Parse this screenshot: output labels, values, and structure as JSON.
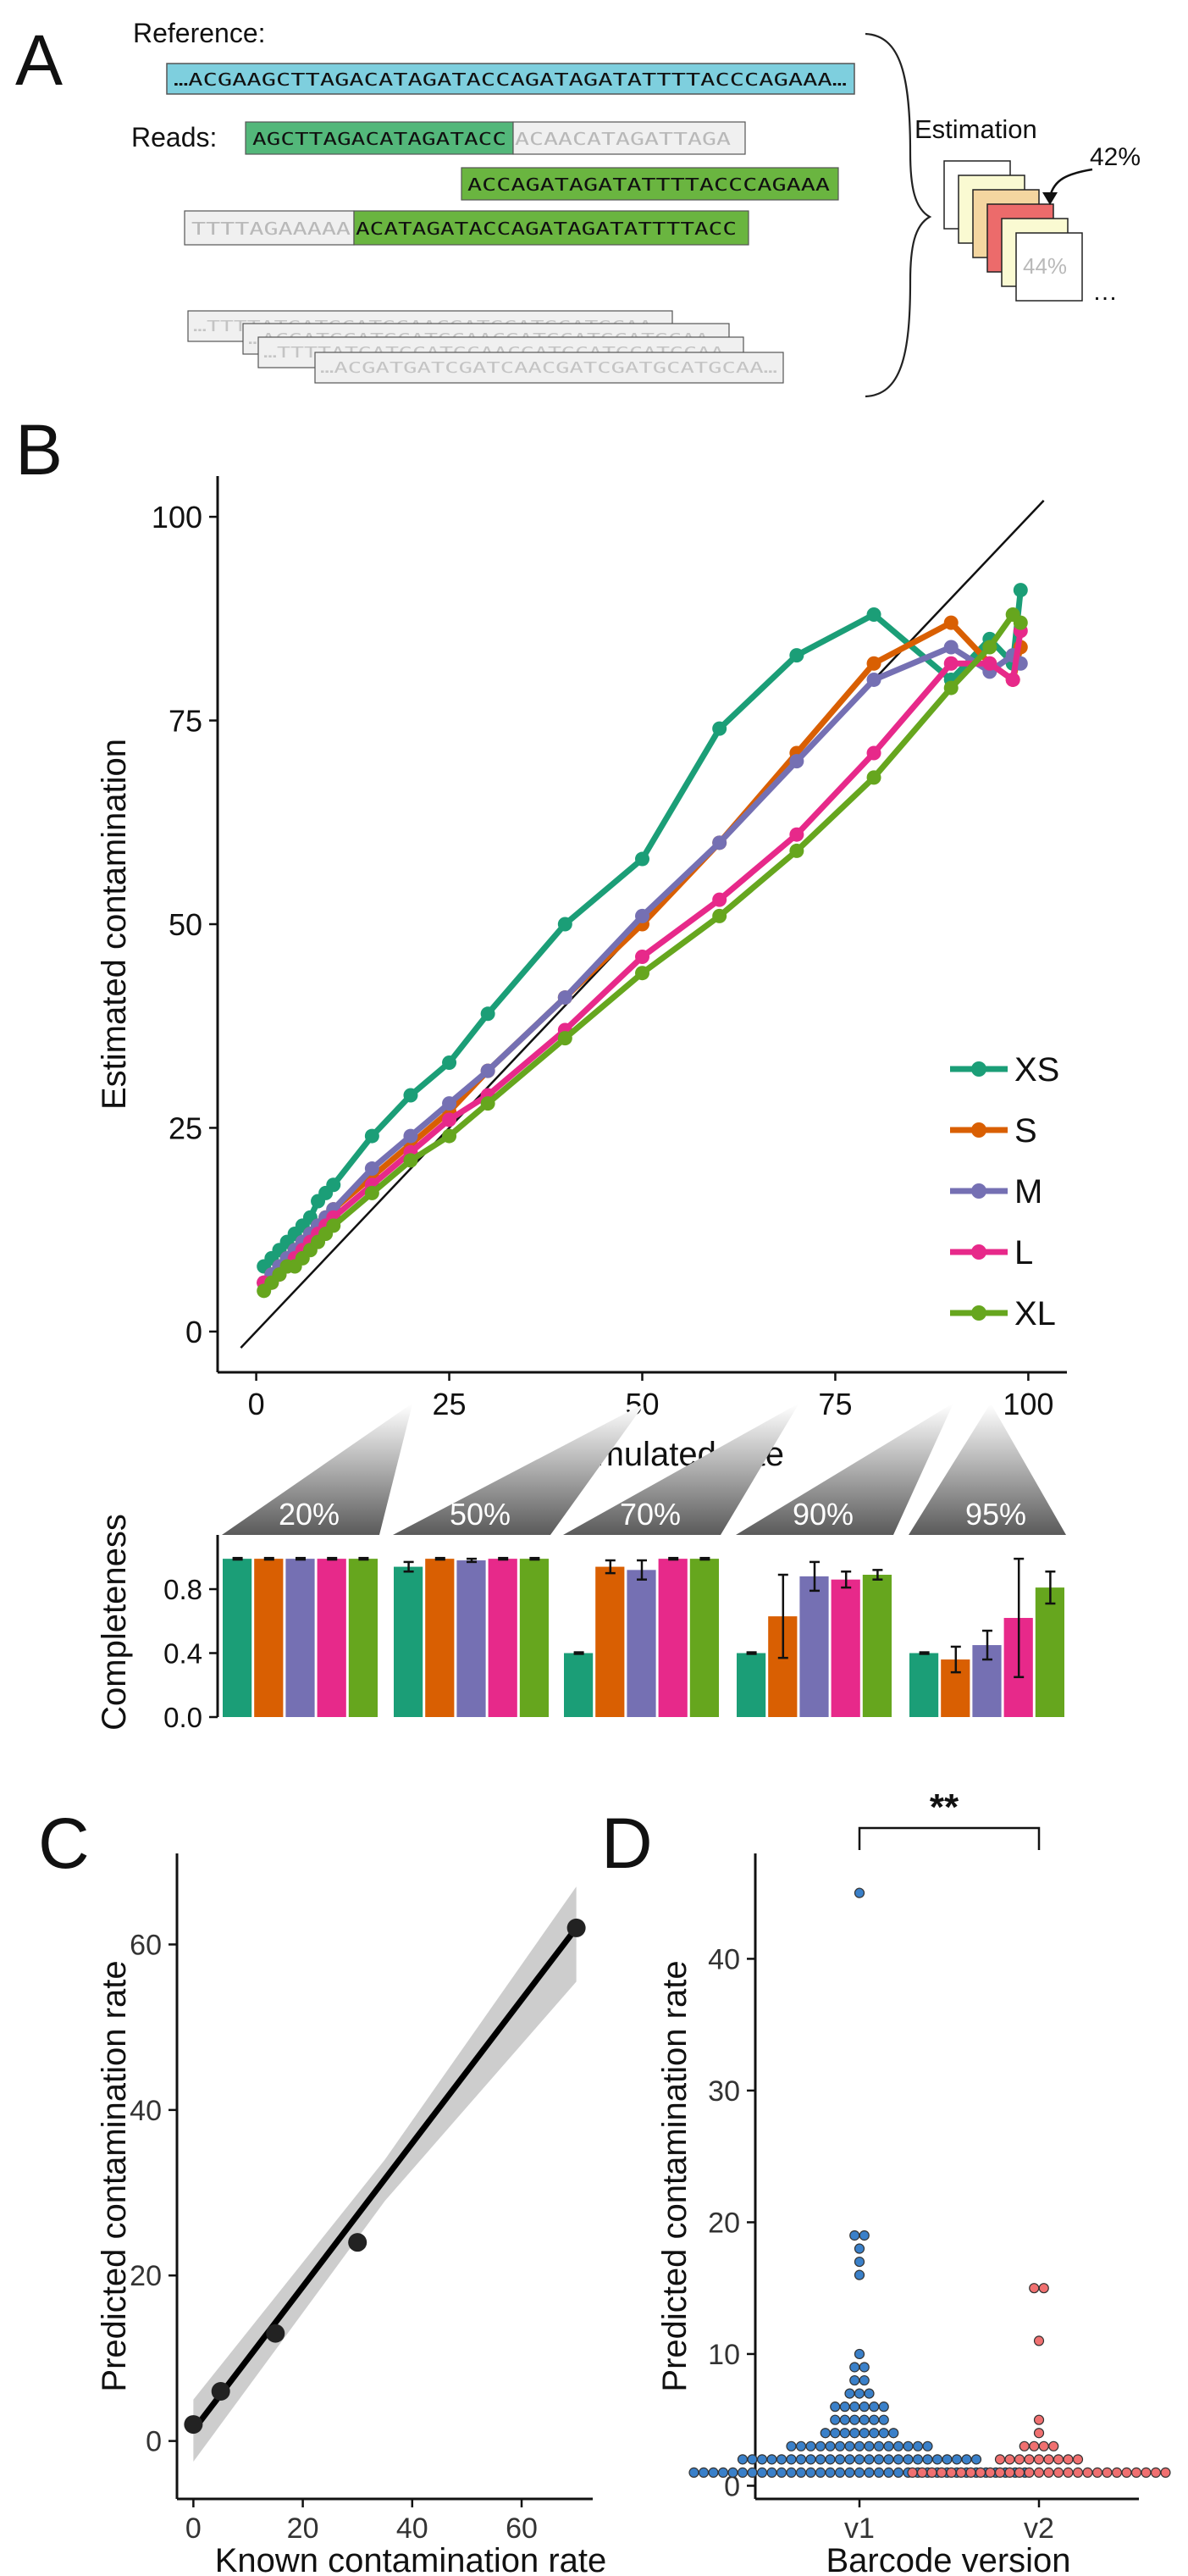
{
  "colors": {
    "XS": "#1b9e77",
    "S": "#d95f02",
    "M": "#7570b3",
    "L": "#e7298a",
    "XL": "#66a61e"
  },
  "panelA": {
    "panel_label": "A",
    "reference_label": "Reference:",
    "reference_seq": "…ACGAAGCTTAGACATAGATACCAGATAGATATTTTACCCAGAAA…",
    "reads_label": "Reads:",
    "read1_match": "AGCTTAGACATAGATACC",
    "read1_mismatch": "ACAACATAGATTAGA",
    "read2": "ACCAGATAGATATTTTACCCAGAAA",
    "read3_mismatch": "TTTTAGAAAAA",
    "read3_match": "ACATAGATACCAGATAGATATTTTACC",
    "gray_reads": [
      "…TTTTATGATGCATGCAACGATGCATGCATGCAA…",
      "…ACGATGCATGCATGCAACGATGCATGCATGCAA…",
      "…TTTTATGATGCATGCAACGATGCATGCATGCAA…",
      "…ACGATGATCGATCAACGATCGATGCATGCAA…"
    ],
    "estimation_label": "Estimation",
    "estimate_top": "42%",
    "estimate_front": "44%",
    "ellipsis": "…"
  },
  "panelB": {
    "panel_label": "B",
    "chart_data": {
      "type": "line",
      "xlabel": "Simulated rate",
      "ylabel": "Estimated contamination",
      "xlim": [
        -5,
        105
      ],
      "ylim": [
        -5,
        105
      ],
      "xticks": [
        0,
        25,
        50,
        75,
        100
      ],
      "yticks": [
        0,
        25,
        50,
        75,
        100
      ],
      "identity_line": true,
      "legend_position": "right",
      "series": [
        {
          "name": "XS",
          "x": [
            1,
            2,
            3,
            4,
            5,
            6,
            7,
            8,
            9,
            10,
            15,
            20,
            25,
            30,
            40,
            50,
            60,
            70,
            80,
            90,
            95,
            98,
            99
          ],
          "y": [
            8,
            9,
            10,
            11,
            12,
            13,
            14,
            16,
            17,
            18,
            24,
            29,
            33,
            39,
            50,
            58,
            74,
            83,
            88,
            80,
            85,
            82,
            91
          ]
        },
        {
          "name": "S",
          "x": [
            1,
            2,
            3,
            4,
            5,
            6,
            7,
            8,
            9,
            10,
            15,
            20,
            25,
            30,
            40,
            50,
            60,
            70,
            80,
            90,
            95,
            98,
            99
          ],
          "y": [
            6,
            7,
            8,
            9,
            10,
            11,
            12,
            13,
            14,
            15,
            19,
            23,
            27,
            32,
            41,
            50,
            60,
            71,
            82,
            87,
            82,
            80,
            84
          ]
        },
        {
          "name": "M",
          "x": [
            1,
            2,
            3,
            4,
            5,
            6,
            7,
            8,
            9,
            10,
            15,
            20,
            25,
            30,
            40,
            50,
            60,
            70,
            80,
            90,
            95,
            98,
            99
          ],
          "y": [
            6,
            7,
            8,
            9,
            10,
            11,
            12,
            13,
            14,
            15,
            20,
            24,
            28,
            32,
            41,
            51,
            60,
            70,
            80,
            84,
            81,
            83,
            82
          ]
        },
        {
          "name": "L",
          "x": [
            1,
            2,
            3,
            4,
            5,
            6,
            7,
            8,
            9,
            10,
            15,
            20,
            25,
            30,
            40,
            50,
            60,
            70,
            80,
            90,
            95,
            98,
            99
          ],
          "y": [
            6,
            6,
            7,
            8,
            9,
            10,
            11,
            12,
            13,
            14,
            18,
            22,
            26,
            29,
            37,
            46,
            53,
            61,
            71,
            82,
            82,
            80,
            86
          ]
        },
        {
          "name": "XL",
          "x": [
            1,
            2,
            3,
            4,
            5,
            6,
            7,
            8,
            9,
            10,
            15,
            20,
            25,
            30,
            40,
            50,
            60,
            70,
            80,
            90,
            95,
            98,
            99
          ],
          "y": [
            5,
            6,
            7,
            8,
            8,
            9,
            10,
            11,
            12,
            13,
            17,
            21,
            24,
            28,
            36,
            44,
            51,
            59,
            68,
            79,
            84,
            88,
            87
          ]
        }
      ]
    },
    "completeness_chart": {
      "type": "bar",
      "ylabel": "Completeness",
      "ylim": [
        0,
        1
      ],
      "yticks": [
        "0.0",
        "0.4",
        "0.8"
      ],
      "group_labels": [
        "20%",
        "50%",
        "70%",
        "90%",
        "95%"
      ],
      "group_x": [
        20,
        50,
        70,
        90,
        95
      ],
      "series_order": [
        "XS",
        "S",
        "M",
        "L",
        "XL"
      ],
      "values": [
        [
          0.99,
          0.99,
          0.99,
          0.99,
          0.99
        ],
        [
          0.94,
          0.99,
          0.98,
          0.99,
          0.99
        ],
        [
          0.4,
          0.94,
          0.92,
          0.99,
          0.99
        ],
        [
          0.4,
          0.63,
          0.88,
          0.86,
          0.89
        ],
        [
          0.4,
          0.36,
          0.45,
          0.62,
          0.81
        ]
      ],
      "errors": [
        [
          0.005,
          0.005,
          0.005,
          0.005,
          0.005
        ],
        [
          0.03,
          0.005,
          0.01,
          0.005,
          0.005
        ],
        [
          0.005,
          0.04,
          0.06,
          0.005,
          0.005
        ],
        [
          0.005,
          0.26,
          0.09,
          0.05,
          0.03
        ],
        [
          0.005,
          0.08,
          0.09,
          0.37,
          0.1
        ]
      ]
    }
  },
  "panelC": {
    "panel_label": "C",
    "chart_data": {
      "type": "scatter",
      "xlabel": "Known contamination rate",
      "ylabel": "Predicted contamination rate",
      "xlim": [
        -3,
        73
      ],
      "ylim": [
        -7,
        71
      ],
      "xticks": [
        0,
        20,
        40,
        60
      ],
      "yticks": [
        0,
        20,
        40,
        60
      ],
      "points": [
        [
          0,
          2
        ],
        [
          5,
          6
        ],
        [
          15,
          13
        ],
        [
          30,
          24
        ],
        [
          70,
          62
        ]
      ],
      "fit": {
        "x0": 0,
        "y0": 1.3,
        "x1": 70,
        "y1": 62
      },
      "ci": {
        "x": [
          0,
          35,
          70
        ],
        "lo": [
          -2.5,
          29,
          55.5
        ],
        "hi": [
          5,
          34,
          67
        ]
      }
    }
  },
  "panelD": {
    "panel_label": "D",
    "significance": "**",
    "chart_data": {
      "type": "scatter",
      "xlabel": "Barcode version",
      "ylabel": "Predicted contamination rate",
      "categories": [
        "v1",
        "v2"
      ],
      "ylim": [
        -1,
        48
      ],
      "yticks": [
        0,
        10,
        20,
        30,
        40
      ],
      "series": [
        {
          "name": "v1",
          "values": [
            45,
            19,
            19,
            18,
            17,
            16,
            10,
            9,
            9,
            8,
            8,
            7,
            7,
            7,
            6,
            6,
            6,
            6,
            6,
            6,
            5,
            5,
            5,
            5,
            5,
            5,
            4,
            4,
            4,
            4,
            4,
            4,
            4,
            4,
            3,
            3,
            3,
            3,
            3,
            3,
            3,
            3,
            3,
            3,
            3,
            3,
            3,
            3,
            3,
            2,
            2,
            2,
            2,
            2,
            2,
            2,
            2,
            2,
            2,
            2,
            2,
            2,
            2,
            2,
            2,
            2,
            2,
            2,
            2,
            2,
            2,
            2,
            2,
            2,
            1,
            1,
            1,
            1,
            1,
            1,
            1,
            1,
            1,
            1,
            1,
            1,
            1,
            1,
            1,
            1,
            1,
            1,
            1,
            1,
            1,
            1,
            1,
            1,
            1,
            1,
            1,
            1,
            1,
            1,
            1,
            1,
            1,
            1,
            1
          ]
        },
        {
          "name": "v2",
          "values": [
            15,
            15,
            11,
            5,
            4,
            3,
            3,
            3,
            3,
            2,
            2,
            2,
            2,
            2,
            2,
            2,
            2,
            2,
            1,
            1,
            1,
            1,
            1,
            1,
            1,
            1,
            1,
            1,
            1,
            1,
            1,
            1,
            1,
            1,
            1,
            1,
            1,
            1,
            1,
            1,
            1,
            1,
            1,
            1,
            1
          ]
        }
      ],
      "colors": {
        "v1": "#3a80c9",
        "v2": "#f07070"
      }
    }
  }
}
